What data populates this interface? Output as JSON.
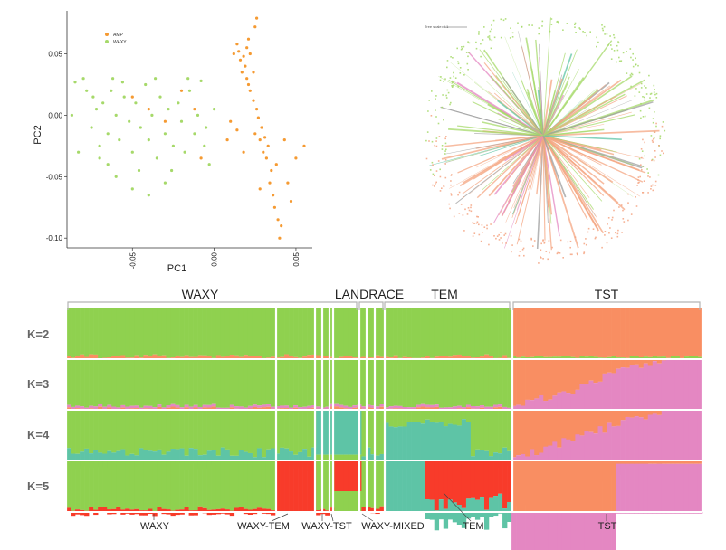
{
  "colors": {
    "amp": "#f59a32",
    "waxy": "#a6d96a",
    "green": "#8fd14f",
    "orange": "#f98e62",
    "pink": "#e487c2",
    "teal": "#5ec4a6",
    "red": "#f83b2a",
    "bracket": "#b4b4b4",
    "axis": "#333333"
  },
  "chart_data": [
    {
      "type": "scatter",
      "xlabel": "PC1",
      "ylabel": "PC2",
      "xlim": [
        -0.09,
        0.06
      ],
      "ylim": [
        -0.105,
        0.085
      ],
      "xticks": [
        -0.05,
        0.0,
        0.05
      ],
      "xtick_labels": [
        "-0.05",
        "0.00",
        "0.05"
      ],
      "yticks": [
        0.05,
        0.0,
        -0.05,
        -0.1
      ],
      "ytick_labels": [
        "0.05",
        "0.00",
        "-0.05",
        "-0.10"
      ],
      "legend_position": "top-left",
      "series": [
        {
          "name": "AMP",
          "color": "#f59a32",
          "points": [
            [
              0.015,
              0.052
            ],
            [
              0.018,
              0.048
            ],
            [
              0.012,
              0.05
            ],
            [
              0.02,
              0.055
            ],
            [
              0.016,
              0.045
            ],
            [
              0.022,
              0.05
            ],
            [
              0.014,
              0.058
            ],
            [
              0.019,
              0.04
            ],
            [
              0.021,
              0.062
            ],
            [
              0.017,
              0.035
            ],
            [
              0.025,
              0.072
            ],
            [
              0.026,
              0.079
            ],
            [
              0.02,
              0.03
            ],
            [
              0.022,
              0.02
            ],
            [
              0.024,
              0.012
            ],
            [
              0.026,
              0.005
            ],
            [
              0.027,
              -0.002
            ],
            [
              0.029,
              -0.01
            ],
            [
              0.031,
              -0.018
            ],
            [
              0.033,
              -0.025
            ],
            [
              0.032,
              -0.035
            ],
            [
              0.035,
              -0.045
            ],
            [
              0.034,
              -0.055
            ],
            [
              0.036,
              -0.065
            ],
            [
              0.037,
              -0.075
            ],
            [
              0.039,
              -0.085
            ],
            [
              0.041,
              -0.09
            ],
            [
              0.04,
              -0.1
            ],
            [
              0.028,
              -0.02
            ],
            [
              0.03,
              -0.03
            ],
            [
              0.025,
              -0.015
            ],
            [
              0.038,
              -0.04
            ],
            [
              0.043,
              -0.02
            ],
            [
              0.045,
              -0.055
            ],
            [
              0.05,
              -0.035
            ],
            [
              0.055,
              -0.025
            ],
            [
              0.047,
              -0.07
            ],
            [
              0.024,
              0.035
            ],
            [
              0.021,
              0.025
            ],
            [
              0.014,
              -0.012
            ],
            [
              0.008,
              -0.02
            ],
            [
              0.01,
              -0.005
            ],
            [
              -0.03,
              -0.005
            ],
            [
              -0.02,
              0.02
            ],
            [
              -0.05,
              0.015
            ],
            [
              -0.04,
              0.005
            ],
            [
              -0.008,
              -0.035
            ],
            [
              -0.012,
              0.005
            ],
            [
              0.018,
              -0.03
            ],
            [
              0.028,
              -0.06
            ]
          ]
        },
        {
          "name": "WAXY",
          "color": "#a6d96a",
          "points": [
            [
              -0.085,
              0.027
            ],
            [
              -0.08,
              0.03
            ],
            [
              -0.078,
              0.02
            ],
            [
              -0.075,
              -0.01
            ],
            [
              -0.072,
              0.005
            ],
            [
              -0.07,
              -0.025
            ],
            [
              -0.068,
              0.01
            ],
            [
              -0.065,
              -0.015
            ],
            [
              -0.063,
              0.02
            ],
            [
              -0.06,
              0.0
            ],
            [
              -0.058,
              -0.02
            ],
            [
              -0.055,
              0.015
            ],
            [
              -0.052,
              -0.005
            ],
            [
              -0.05,
              -0.03
            ],
            [
              -0.048,
              0.01
            ],
            [
              -0.045,
              -0.01
            ],
            [
              -0.042,
              0.025
            ],
            [
              -0.04,
              -0.02
            ],
            [
              -0.038,
              0.0
            ],
            [
              -0.035,
              -0.035
            ],
            [
              -0.033,
              0.015
            ],
            [
              -0.03,
              -0.015
            ],
            [
              -0.028,
              0.005
            ],
            [
              -0.025,
              -0.025
            ],
            [
              -0.022,
              0.01
            ],
            [
              -0.02,
              -0.005
            ],
            [
              -0.018,
              -0.03
            ],
            [
              -0.015,
              0.02
            ],
            [
              -0.012,
              -0.015
            ],
            [
              -0.01,
              0.0
            ],
            [
              -0.008,
              0.028
            ],
            [
              -0.005,
              -0.01
            ],
            [
              -0.003,
              -0.04
            ],
            [
              0.0,
              0.005
            ],
            [
              -0.06,
              -0.05
            ],
            [
              -0.05,
              -0.06
            ],
            [
              -0.04,
              -0.065
            ],
            [
              -0.03,
              -0.055
            ],
            [
              -0.065,
              -0.04
            ],
            [
              -0.083,
              -0.03
            ],
            [
              -0.087,
              0.0
            ],
            [
              -0.074,
              0.015
            ],
            [
              -0.056,
              0.027
            ],
            [
              -0.046,
              -0.045
            ],
            [
              -0.036,
              0.03
            ],
            [
              -0.026,
              -0.045
            ],
            [
              -0.016,
              0.03
            ],
            [
              -0.006,
              -0.025
            ],
            [
              -0.07,
              -0.035
            ],
            [
              -0.062,
              0.03
            ]
          ]
        }
      ]
    },
    {
      "type": "other",
      "subtype": "radial-tree",
      "legend_text": "Tree scale: 0.1",
      "clade_colors": [
        "#a6d96a",
        "#f4a582",
        "#e487c2",
        "#5ec4a6",
        "#9e9e9e"
      ]
    },
    {
      "type": "area",
      "subtype": "admixture-structure",
      "k_values": [
        "K=2",
        "K=3",
        "K=4",
        "K=5"
      ],
      "group_labels": [
        "WAXY",
        "LANDRACE",
        "TEM",
        "TST"
      ],
      "sub_labels": [
        "WAXY",
        "WAXY-TEM",
        "WAXY-TST",
        "WAXY-MIXED",
        "TEM",
        "TST"
      ],
      "components": [
        "green",
        "orange",
        "pink",
        "teal",
        "red"
      ],
      "panels": [
        {
          "k": "K=2",
          "segments": [
            [
              "green",
              0.62,
              "orange",
              0.38
            ]
          ]
        },
        {
          "k": "K=3",
          "segments": [
            [
              "green",
              0.62,
              "orange",
              0.2,
              "pink",
              0.18
            ]
          ]
        },
        {
          "k": "K=4",
          "segments": [
            [
              "green",
              0.5,
              "teal",
              0.12,
              "orange",
              0.2,
              "pink",
              0.18
            ]
          ]
        },
        {
          "k": "K=5",
          "segments": [
            [
              "green",
              0.36,
              "red",
              0.1,
              "teal",
              0.08,
              "orange",
              0.26,
              "pink",
              0.2
            ]
          ]
        }
      ]
    }
  ]
}
